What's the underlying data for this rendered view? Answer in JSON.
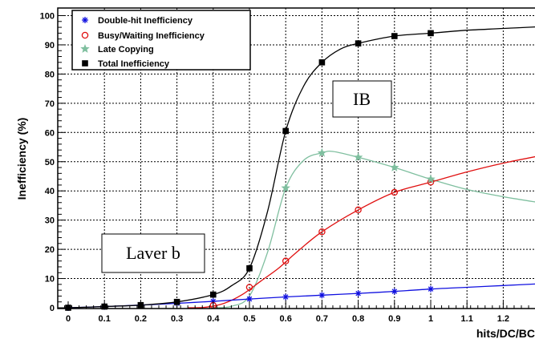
{
  "chart_data": {
    "type": "line",
    "title": "",
    "xlabel": "hits/DC/BC",
    "ylabel": "Inefficiency (%)",
    "xlim": [
      -0.05,
      1.3
    ],
    "ylim": [
      0,
      102
    ],
    "x_ticks": [
      "0",
      "0.1",
      "0.2",
      "0.3",
      "0.4",
      "0.5",
      "0.6",
      "0.7",
      "0.8",
      "0.9",
      "1",
      "1.1",
      "1.2"
    ],
    "y_ticks": [
      "0",
      "10",
      "20",
      "30",
      "40",
      "50",
      "60",
      "70",
      "80",
      "90",
      "100"
    ],
    "grid": true,
    "legend_position": "top-left",
    "series": [
      {
        "name": "Double-hit Inefficiency",
        "marker": "asterisk",
        "color": "#1010e0",
        "x": [
          0,
          0.1,
          0.2,
          0.3,
          0.4,
          0.5,
          0.6,
          0.7,
          0.8,
          0.9,
          1.0
        ],
        "y": [
          0,
          0.4,
          0.9,
          1.5,
          2.2,
          3.0,
          3.7,
          4.3,
          4.9,
          5.6,
          6.4
        ],
        "curve_x": [
          0,
          0.1,
          0.2,
          0.3,
          0.4,
          0.5,
          0.6,
          0.7,
          0.8,
          0.9,
          1.0,
          1.1,
          1.2,
          1.3
        ],
        "curve_y": [
          0,
          0.4,
          0.9,
          1.5,
          2.2,
          3.0,
          3.7,
          4.3,
          4.9,
          5.6,
          6.4,
          7.0,
          7.6,
          8.2
        ]
      },
      {
        "name": "Busy/Waiting Inefficiency",
        "marker": "open-circle",
        "color": "#e01010",
        "x": [
          0.4,
          0.5,
          0.6,
          0.7,
          0.8,
          0.9,
          1.0
        ],
        "y": [
          0.8,
          7.0,
          16.0,
          26.0,
          33.5,
          39.5,
          43.0
        ],
        "curve_x": [
          0.33,
          0.38,
          0.43,
          0.48,
          0.53,
          0.58,
          0.63,
          0.7,
          0.8,
          0.9,
          1.0,
          1.1,
          1.2,
          1.3
        ],
        "curve_y": [
          0,
          0.2,
          1.5,
          4.5,
          9.0,
          13.5,
          19.0,
          26.0,
          33.5,
          39.5,
          43.0,
          46.5,
          49.5,
          52.0
        ]
      },
      {
        "name": "Late Copying",
        "marker": "star",
        "color": "#7fbf9f",
        "x": [
          0.6,
          0.7,
          0.8,
          0.9,
          1.0
        ],
        "y": [
          41.0,
          53.0,
          51.5,
          48.0,
          44.0
        ],
        "curve_x": [
          0.4,
          0.45,
          0.5,
          0.55,
          0.6,
          0.65,
          0.7,
          0.73,
          0.8,
          0.9,
          1.0,
          1.1,
          1.2,
          1.3
        ],
        "curve_y": [
          0,
          0.5,
          4.0,
          19.0,
          41.0,
          50.5,
          53.0,
          53.5,
          51.5,
          48.0,
          44.0,
          40.5,
          38.0,
          36.0
        ]
      },
      {
        "name": "Total Inefficiency",
        "marker": "filled-square",
        "color": "#000000",
        "x": [
          0,
          0.1,
          0.2,
          0.3,
          0.4,
          0.5,
          0.6,
          0.7,
          0.8,
          0.9,
          1.0
        ],
        "y": [
          0,
          0.4,
          0.9,
          2.0,
          4.5,
          13.5,
          60.5,
          84.0,
          90.5,
          93.0,
          94.0
        ],
        "curve_x": [
          0,
          0.1,
          0.2,
          0.3,
          0.4,
          0.45,
          0.5,
          0.55,
          0.6,
          0.65,
          0.7,
          0.75,
          0.8,
          0.9,
          1.0,
          1.1,
          1.2,
          1.3
        ],
        "curve_y": [
          0,
          0.4,
          0.9,
          2.0,
          4.5,
          7.5,
          13.5,
          33.0,
          60.5,
          76.0,
          84.0,
          88.5,
          90.5,
          93.0,
          94.0,
          95.0,
          95.6,
          96.2
        ]
      }
    ],
    "annotations": [
      {
        "text": "IB",
        "x": 0.81,
        "y": 71.5
      },
      {
        "text": "Laver b",
        "x": 0.26,
        "y": 17.5
      }
    ]
  }
}
